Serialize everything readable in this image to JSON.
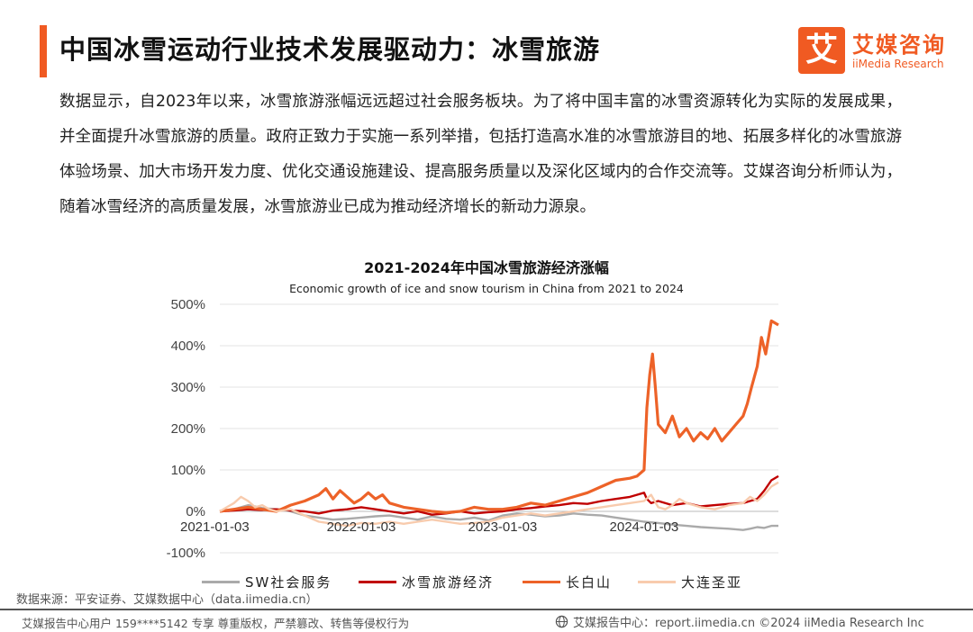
{
  "header": {
    "title": "中国冰雪运动行业技术发展驱动力：冰雪旅游",
    "logo_mark": "艾",
    "logo_cn": "艾媒咨询",
    "logo_en": "iiMedia Research"
  },
  "paragraph": "数据显示，自2023年以来，冰雪旅游涨幅远远超过社会服务板块。为了将中国丰富的冰雪资源转化为实际的发展成果，并全面提升冰雪旅游的质量。政府正致力于实施一系列举措，包括打造高水准的冰雪旅游目的地、拓展多样化的冰雪旅游体验场景、加大市场开发力度、优化交通设施建设、提高服务质量以及深化区域内的合作交流等。艾媒咨询分析师认为，随着冰雪经济的高质量发展，冰雪旅游业已成为推动经济增长的新动力源泉。",
  "chart_data": {
    "type": "line",
    "title": "2021-2024年中国冰雪旅游经济涨幅",
    "subtitle": "Economic growth of ice and snow tourism in China from 2021 to 2024",
    "y_ticks": [
      "500%",
      "400%",
      "300%",
      "200%",
      "100%",
      "0%",
      "-100%"
    ],
    "y_tick_values": [
      500,
      400,
      300,
      200,
      100,
      0,
      -100
    ],
    "ylim": [
      -100,
      500
    ],
    "x_ticks": [
      "2021-01-03",
      "2022-01-03",
      "2023-01-03",
      "2024-01-03"
    ],
    "x_tick_values": [
      0,
      1,
      2,
      3
    ],
    "xlim": [
      0,
      3.95
    ],
    "grid": "horizontal",
    "legend_position": "bottom",
    "series": [
      {
        "name": "SW社会服务",
        "color": "#aaaaaa",
        "points": [
          [
            0,
            0
          ],
          [
            0.1,
            5
          ],
          [
            0.2,
            15
          ],
          [
            0.3,
            8
          ],
          [
            0.4,
            5
          ],
          [
            0.5,
            0
          ],
          [
            0.6,
            -10
          ],
          [
            0.7,
            -15
          ],
          [
            0.8,
            -20
          ],
          [
            0.9,
            -18
          ],
          [
            1.0,
            -15
          ],
          [
            1.1,
            -12
          ],
          [
            1.2,
            -10
          ],
          [
            1.3,
            -15
          ],
          [
            1.4,
            -20
          ],
          [
            1.5,
            -12
          ],
          [
            1.6,
            -18
          ],
          [
            1.7,
            -20
          ],
          [
            1.8,
            -15
          ],
          [
            1.9,
            -22
          ],
          [
            2.0,
            -10
          ],
          [
            2.1,
            -5
          ],
          [
            2.2,
            -8
          ],
          [
            2.3,
            -12
          ],
          [
            2.4,
            -10
          ],
          [
            2.5,
            -5
          ],
          [
            2.6,
            -8
          ],
          [
            2.7,
            -10
          ],
          [
            2.8,
            -15
          ],
          [
            2.9,
            -20
          ],
          [
            3.0,
            -25
          ],
          [
            3.1,
            -28
          ],
          [
            3.2,
            -32
          ],
          [
            3.3,
            -35
          ],
          [
            3.4,
            -38
          ],
          [
            3.5,
            -40
          ],
          [
            3.6,
            -42
          ],
          [
            3.7,
            -45
          ],
          [
            3.75,
            -42
          ],
          [
            3.8,
            -38
          ],
          [
            3.85,
            -40
          ],
          [
            3.9,
            -35
          ],
          [
            3.95,
            -35
          ]
        ]
      },
      {
        "name": "冰雪旅游经济",
        "color": "#c00000",
        "points": [
          [
            0,
            0
          ],
          [
            0.1,
            2
          ],
          [
            0.2,
            5
          ],
          [
            0.3,
            3
          ],
          [
            0.4,
            5
          ],
          [
            0.5,
            2
          ],
          [
            0.6,
            0
          ],
          [
            0.7,
            -5
          ],
          [
            0.8,
            2
          ],
          [
            0.9,
            5
          ],
          [
            1.0,
            10
          ],
          [
            1.1,
            5
          ],
          [
            1.2,
            0
          ],
          [
            1.3,
            -5
          ],
          [
            1.4,
            0
          ],
          [
            1.5,
            -8
          ],
          [
            1.6,
            -5
          ],
          [
            1.7,
            0
          ],
          [
            1.8,
            -5
          ],
          [
            1.9,
            -2
          ],
          [
            2.0,
            0
          ],
          [
            2.1,
            5
          ],
          [
            2.2,
            8
          ],
          [
            2.3,
            12
          ],
          [
            2.4,
            15
          ],
          [
            2.5,
            20
          ],
          [
            2.6,
            18
          ],
          [
            2.7,
            25
          ],
          [
            2.8,
            30
          ],
          [
            2.9,
            35
          ],
          [
            2.95,
            40
          ],
          [
            3.0,
            45
          ],
          [
            3.02,
            30
          ],
          [
            3.05,
            20
          ],
          [
            3.1,
            25
          ],
          [
            3.2,
            15
          ],
          [
            3.3,
            20
          ],
          [
            3.4,
            12
          ],
          [
            3.5,
            15
          ],
          [
            3.6,
            18
          ],
          [
            3.7,
            20
          ],
          [
            3.75,
            25
          ],
          [
            3.8,
            30
          ],
          [
            3.85,
            50
          ],
          [
            3.9,
            75
          ],
          [
            3.95,
            85
          ]
        ]
      },
      {
        "name": "长白山",
        "color": "#ed6228",
        "points": [
          [
            0,
            0
          ],
          [
            0.1,
            5
          ],
          [
            0.2,
            10
          ],
          [
            0.3,
            5
          ],
          [
            0.4,
            0
          ],
          [
            0.5,
            15
          ],
          [
            0.6,
            25
          ],
          [
            0.7,
            40
          ],
          [
            0.75,
            55
          ],
          [
            0.8,
            30
          ],
          [
            0.85,
            50
          ],
          [
            0.9,
            35
          ],
          [
            0.95,
            20
          ],
          [
            1.0,
            30
          ],
          [
            1.05,
            45
          ],
          [
            1.1,
            30
          ],
          [
            1.15,
            40
          ],
          [
            1.2,
            20
          ],
          [
            1.3,
            10
          ],
          [
            1.4,
            5
          ],
          [
            1.5,
            0
          ],
          [
            1.6,
            -3
          ],
          [
            1.7,
            0
          ],
          [
            1.8,
            10
          ],
          [
            1.9,
            5
          ],
          [
            2.0,
            5
          ],
          [
            2.1,
            10
          ],
          [
            2.2,
            20
          ],
          [
            2.3,
            15
          ],
          [
            2.4,
            25
          ],
          [
            2.5,
            35
          ],
          [
            2.6,
            45
          ],
          [
            2.7,
            60
          ],
          [
            2.8,
            75
          ],
          [
            2.9,
            80
          ],
          [
            2.95,
            85
          ],
          [
            3.0,
            100
          ],
          [
            3.02,
            250
          ],
          [
            3.04,
            330
          ],
          [
            3.06,
            380
          ],
          [
            3.08,
            300
          ],
          [
            3.1,
            210
          ],
          [
            3.15,
            190
          ],
          [
            3.2,
            230
          ],
          [
            3.25,
            180
          ],
          [
            3.3,
            200
          ],
          [
            3.35,
            170
          ],
          [
            3.4,
            190
          ],
          [
            3.45,
            175
          ],
          [
            3.5,
            200
          ],
          [
            3.55,
            170
          ],
          [
            3.6,
            190
          ],
          [
            3.65,
            210
          ],
          [
            3.7,
            230
          ],
          [
            3.73,
            260
          ],
          [
            3.76,
            300
          ],
          [
            3.8,
            350
          ],
          [
            3.83,
            420
          ],
          [
            3.86,
            380
          ],
          [
            3.9,
            460
          ],
          [
            3.95,
            450
          ]
        ]
      },
      {
        "name": "大连圣亚",
        "color": "#f8cbad",
        "points": [
          [
            0,
            0
          ],
          [
            0.05,
            10
          ],
          [
            0.1,
            20
          ],
          [
            0.15,
            35
          ],
          [
            0.2,
            25
          ],
          [
            0.25,
            10
          ],
          [
            0.3,
            15
          ],
          [
            0.35,
            5
          ],
          [
            0.4,
            0
          ],
          [
            0.5,
            5
          ],
          [
            0.6,
            -10
          ],
          [
            0.7,
            -25
          ],
          [
            0.8,
            -30
          ],
          [
            0.9,
            -35
          ],
          [
            1.0,
            -28
          ],
          [
            1.1,
            -30
          ],
          [
            1.2,
            -25
          ],
          [
            1.3,
            -30
          ],
          [
            1.4,
            -25
          ],
          [
            1.5,
            -20
          ],
          [
            1.6,
            -25
          ],
          [
            1.7,
            -30
          ],
          [
            1.8,
            -28
          ],
          [
            1.9,
            -25
          ],
          [
            2.0,
            -15
          ],
          [
            2.1,
            -10
          ],
          [
            2.2,
            -5
          ],
          [
            2.3,
            -10
          ],
          [
            2.4,
            -5
          ],
          [
            2.5,
            0
          ],
          [
            2.6,
            5
          ],
          [
            2.7,
            10
          ],
          [
            2.8,
            15
          ],
          [
            2.9,
            20
          ],
          [
            3.0,
            25
          ],
          [
            3.05,
            40
          ],
          [
            3.1,
            10
          ],
          [
            3.15,
            5
          ],
          [
            3.2,
            15
          ],
          [
            3.25,
            30
          ],
          [
            3.3,
            20
          ],
          [
            3.4,
            10
          ],
          [
            3.5,
            5
          ],
          [
            3.6,
            15
          ],
          [
            3.7,
            20
          ],
          [
            3.75,
            35
          ],
          [
            3.8,
            25
          ],
          [
            3.85,
            40
          ],
          [
            3.9,
            60
          ],
          [
            3.95,
            70
          ]
        ]
      }
    ]
  },
  "source": "数据来源：平安证券、艾媒数据中心（data.iimedia.cn）",
  "footer": {
    "left": "艾媒报告中心用户 159****5142 专享 尊重版权，严禁篡改、转售等侵权行为",
    "right": "艾媒报告中心：report.iimedia.cn  ©2024  iiMedia Research  Inc"
  }
}
